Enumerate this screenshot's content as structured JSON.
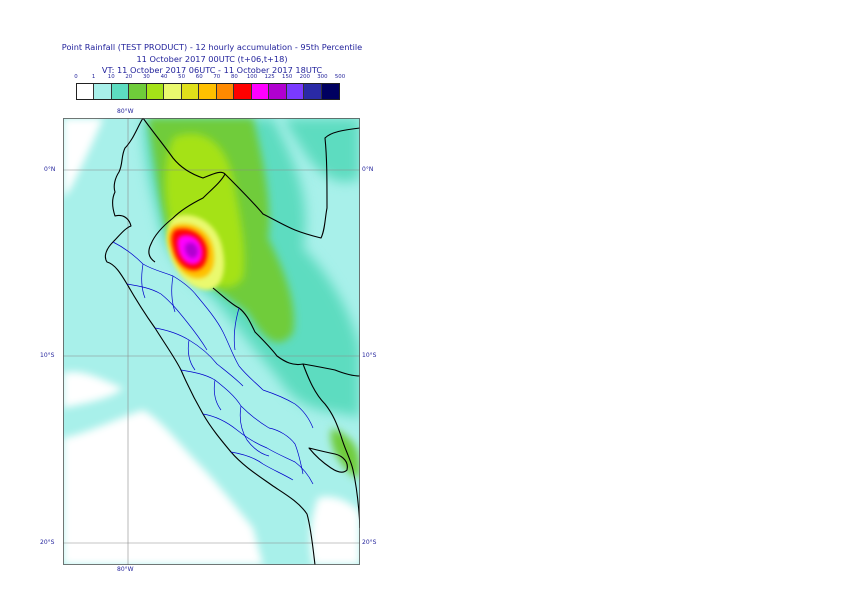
{
  "title": {
    "line1": "Point Rainfall (TEST PRODUCT) - 12 hourly accumulation - 95th Percentile",
    "line2": "11 October 2017 00UTC (t+06,t+18)",
    "line3": "VT: 11 October 2017 06UTC - 11 October 2017 18UTC"
  },
  "legend": {
    "thresholds": [
      "0",
      "1",
      "10",
      "20",
      "30",
      "40",
      "50",
      "60",
      "70",
      "80",
      "100",
      "125",
      "150",
      "200",
      "300",
      "500"
    ],
    "colors": [
      "#ffffff",
      "#a8f0ea",
      "#5ddcc0",
      "#6fcc3a",
      "#a5e218",
      "#eaf96e",
      "#e0e01a",
      "#ffc000",
      "#ff8a00",
      "#ff0000",
      "#ff00ff",
      "#b000d0",
      "#7a3aff",
      "#2a2aa6",
      "#000060"
    ]
  },
  "map": {
    "labels": {
      "lon_top": "80°W",
      "lon_bottom": "80°W",
      "lat_0_left": "0°N",
      "lat_0_right": "0°N",
      "lat_10_left": "10°S",
      "lat_10_right": "10°S",
      "lat_20_left": "20°S",
      "lat_20_right": "20°S"
    },
    "colors": {
      "ocean_light": "#a8f0ea",
      "land_low": "#a8f0ea",
      "mid": "#5ddcc0",
      "green": "#6fcc3a",
      "yellowgreen": "#a5e218",
      "yellow": "#eaf96e",
      "orange": "#ffc000",
      "red": "#ff0000",
      "magenta": "#ff00ff",
      "purple": "#b000d0",
      "coast": "#000000",
      "regions": "#0000cc",
      "grid": "#8a8a8a"
    }
  }
}
